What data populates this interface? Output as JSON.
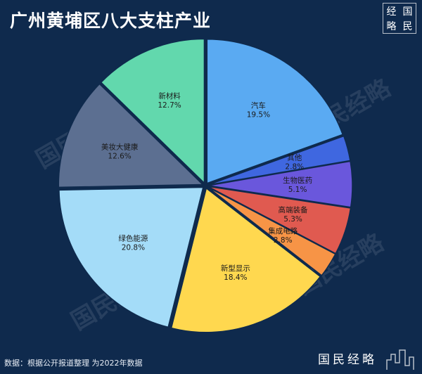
{
  "title": "广州黄埔区八大支柱产业",
  "logo_top": [
    "经",
    "国",
    "略",
    "民"
  ],
  "watermark": "国民经略",
  "brand": "国民经略",
  "source_note": "数据：根据公开报道整理 为2022年数据",
  "chart_data": {
    "type": "pie",
    "title": "广州黄埔区八大支柱产业",
    "slices": [
      {
        "label": "汽车",
        "value": 19.5,
        "pct": "19.5%",
        "color": "#5aaaf2"
      },
      {
        "label": "其他",
        "value": 2.8,
        "pct": "2.8%",
        "color": "#3f67e0"
      },
      {
        "label": "生物医药",
        "value": 5.1,
        "pct": "5.1%",
        "color": "#6a57dc"
      },
      {
        "label": "高端装备",
        "value": 5.3,
        "pct": "5.3%",
        "color": "#e05a50"
      },
      {
        "label": "集成电路",
        "value": 2.8,
        "pct": "2.8%",
        "color": "#f79446"
      },
      {
        "label": "新型显示",
        "value": 18.4,
        "pct": "18.4%",
        "color": "#ffd84f"
      },
      {
        "label": "绿色能源",
        "value": 20.8,
        "pct": "20.8%",
        "color": "#a4dcf8"
      },
      {
        "label": "美妆大健康",
        "value": 12.6,
        "pct": "12.6%",
        "color": "#5c6f91"
      },
      {
        "label": "新材料",
        "value": 12.7,
        "pct": "12.7%",
        "color": "#62d8ad"
      }
    ]
  }
}
